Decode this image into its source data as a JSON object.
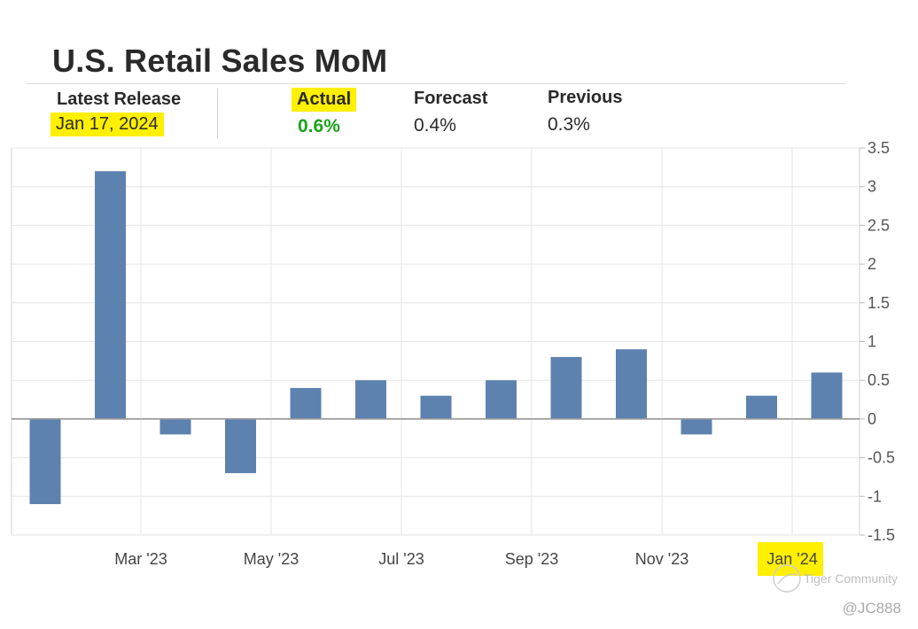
{
  "header": {
    "title": "U.S. Retail Sales MoM",
    "latest_release_label": "Latest Release",
    "latest_release_date": "Jan 17, 2024",
    "actual_label": "Actual",
    "actual_value": "0.6%",
    "forecast_label": "Forecast",
    "forecast_value": "0.4%",
    "previous_label": "Previous",
    "previous_value": "0.3%"
  },
  "colors": {
    "bar": "#5d82af",
    "highlight": "#ffef00",
    "actual_green": "#1aa31a",
    "grid": "#e6e6e6",
    "zero_line": "#9a9a9a"
  },
  "chart_data": {
    "type": "bar",
    "title": "U.S. Retail Sales MoM",
    "xlabel": "",
    "ylabel": "",
    "y_axis_side": "right",
    "ylim": [
      -1.5,
      3.5
    ],
    "y_ticks": [
      "3.5",
      "3",
      "2.5",
      "2",
      "1.5",
      "1",
      "0.5",
      "0",
      "-0.5",
      "-1",
      "-1.5"
    ],
    "x_tick_labels": [
      "Mar '23",
      "May '23",
      "Jul '23",
      "Sep '23",
      "Nov '23",
      "Jan '24"
    ],
    "highlighted_x_tick": "Jan '24",
    "categories": [
      "Jan 2023",
      "Feb 2023",
      "Mar 2023",
      "Apr 2023",
      "May 2023",
      "Jun 2023",
      "Jul 2023",
      "Aug 2023",
      "Sep 2023",
      "Oct 2023",
      "Nov 2023",
      "Dec 2023",
      "Jan 2024"
    ],
    "values": [
      -1.1,
      3.2,
      -0.2,
      -0.7,
      0.4,
      0.5,
      0.3,
      0.5,
      0.8,
      0.9,
      -0.2,
      0.3,
      0.6
    ],
    "grid": true
  },
  "watermark": {
    "brand": "Tiger Community",
    "handle": "@JC888"
  }
}
